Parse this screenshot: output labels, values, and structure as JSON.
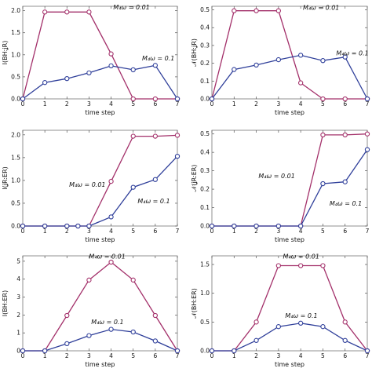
{
  "chart_data": [
    {
      "type": "line",
      "ylabel": "I(BH:ʝR)",
      "xlabel": "time step",
      "xlim": [
        0,
        7
      ],
      "ylim": [
        0,
        2.1
      ],
      "xticks": [
        0,
        1,
        2,
        3,
        4,
        5,
        6,
        7
      ],
      "yticks": [
        0,
        0.5,
        1.0,
        1.5,
        2.0
      ],
      "ytick_labels": [
        "0.0",
        "0.5",
        "1.0",
        "1.5",
        "2.0"
      ],
      "series": [
        {
          "name": "M₄ω = 0.01",
          "color": "#a3306a",
          "x": [
            0,
            1,
            2,
            3,
            4,
            5,
            6,
            7
          ],
          "y": [
            0,
            1.97,
            1.97,
            1.97,
            1.02,
            0,
            0,
            0
          ]
        },
        {
          "name": "M₄ω = 0.1",
          "color": "#2f3f9a",
          "x": [
            0,
            1,
            2,
            3,
            4,
            5,
            6,
            7
          ],
          "y": [
            0,
            0.37,
            0.46,
            0.59,
            0.75,
            0.66,
            0.76,
            0
          ]
        }
      ],
      "annotations": [
        {
          "text": "M₄ω = 0.01",
          "x": 4.1,
          "y": 2.03
        },
        {
          "text": "M₄ω = 0.1",
          "x": 5.4,
          "y": 0.87
        }
      ]
    },
    {
      "type": "line",
      "ylabel": "𝒩(BH:ʝR)",
      "xlabel": "time step",
      "xlim": [
        0,
        7
      ],
      "ylim": [
        0,
        0.52
      ],
      "xticks": [
        0,
        1,
        2,
        3,
        4,
        5,
        6,
        7
      ],
      "yticks": [
        0,
        0.1,
        0.2,
        0.3,
        0.4,
        0.5
      ],
      "ytick_labels": [
        "0.0",
        "0.1",
        "0.2",
        "0.3",
        "0.4",
        "0.5"
      ],
      "series": [
        {
          "name": "M₄ω = 0.01",
          "color": "#a3306a",
          "x": [
            0,
            1,
            2,
            3,
            4,
            5,
            6,
            7
          ],
          "y": [
            0,
            0.495,
            0.495,
            0.495,
            0.09,
            0,
            0,
            0
          ]
        },
        {
          "name": "M₄ω = 0.1",
          "color": "#2f3f9a",
          "x": [
            0,
            1,
            2,
            3,
            4,
            5,
            6,
            7
          ],
          "y": [
            0,
            0.165,
            0.19,
            0.22,
            0.245,
            0.215,
            0.235,
            0
          ]
        }
      ],
      "annotations": [
        {
          "text": "M₄ω = 0.01",
          "x": 4.1,
          "y": 0.5
        },
        {
          "text": "M₄ω = 0.1",
          "x": 5.6,
          "y": 0.245
        }
      ]
    },
    {
      "type": "line",
      "ylabel": "I(ʝR:ER)",
      "xlabel": "time step",
      "xlim": [
        0,
        7
      ],
      "ylim": [
        0,
        2.1
      ],
      "xticks": [
        0,
        1,
        2,
        3,
        4,
        5,
        6,
        7
      ],
      "yticks": [
        0,
        0.5,
        1.0,
        1.5,
        2.0
      ],
      "ytick_labels": [
        "0.0",
        "0.5",
        "1.0",
        "1.5",
        "2.0"
      ],
      "series": [
        {
          "name": "M₄ω = 0.01",
          "color": "#a3306a",
          "x": [
            0,
            1,
            2,
            2.5,
            3,
            4,
            5,
            6,
            7
          ],
          "y": [
            0,
            0,
            0,
            0,
            0,
            0.98,
            1.97,
            1.97,
            1.99
          ]
        },
        {
          "name": "M₄ω = 0.1",
          "color": "#2f3f9a",
          "x": [
            0,
            1,
            2,
            2.5,
            3,
            4,
            5,
            6,
            7
          ],
          "y": [
            0,
            0,
            0,
            0,
            0,
            0.2,
            0.85,
            1.02,
            1.53
          ]
        }
      ],
      "annotations": [
        {
          "text": "M₄ω = 0.01",
          "x": 2.1,
          "y": 0.86
        },
        {
          "text": "M₄ω = 0.1",
          "x": 5.2,
          "y": 0.5
        }
      ]
    },
    {
      "type": "line",
      "ylabel": "𝒩(ʝR:ER)",
      "xlabel": "time step",
      "xlim": [
        0,
        7
      ],
      "ylim": [
        0,
        0.52
      ],
      "xticks": [
        0,
        1,
        2,
        3,
        4,
        5,
        6,
        7
      ],
      "yticks": [
        0,
        0.1,
        0.2,
        0.3,
        0.4,
        0.5
      ],
      "ytick_labels": [
        "0.0",
        "0.1",
        "0.2",
        "0.3",
        "0.4",
        "0.5"
      ],
      "series": [
        {
          "name": "M₄ω = 0.01",
          "color": "#a3306a",
          "x": [
            0,
            1,
            2,
            3,
            4,
            5,
            6,
            7
          ],
          "y": [
            0,
            0,
            0,
            0,
            0,
            0.495,
            0.495,
            0.5
          ]
        },
        {
          "name": "M₄ω = 0.1",
          "color": "#2f3f9a",
          "x": [
            0,
            1,
            2,
            3,
            4,
            5,
            6,
            7
          ],
          "y": [
            0,
            0,
            0,
            0,
            0,
            0.23,
            0.24,
            0.415
          ]
        }
      ],
      "annotations": [
        {
          "text": "M₄ω = 0.01",
          "x": 2.1,
          "y": 0.26
        },
        {
          "text": "M₄ω = 0.1",
          "x": 5.3,
          "y": 0.11
        }
      ]
    },
    {
      "type": "line",
      "ylabel": "I(BH:ER)",
      "xlabel": "time step",
      "xlim": [
        0,
        7
      ],
      "ylim": [
        0,
        5.3
      ],
      "xticks": [
        0,
        1,
        2,
        3,
        4,
        5,
        6,
        7
      ],
      "yticks": [
        0,
        1,
        2,
        3,
        4,
        5
      ],
      "ytick_labels": [
        "0",
        "1",
        "2",
        "3",
        "4",
        "5"
      ],
      "series": [
        {
          "name": "M₄ω = 0.01",
          "color": "#a3306a",
          "x": [
            0,
            1,
            2,
            3,
            4,
            5,
            6,
            7
          ],
          "y": [
            0,
            0,
            1.97,
            3.95,
            4.95,
            3.95,
            1.97,
            0
          ]
        },
        {
          "name": "M₄ω = 0.1",
          "color": "#2f3f9a",
          "x": [
            0,
            1,
            2,
            3,
            4,
            5,
            6,
            7
          ],
          "y": [
            0,
            0,
            0.4,
            0.85,
            1.2,
            1.05,
            0.55,
            0
          ]
        }
      ],
      "annotations": [
        {
          "text": "M₄ω = 0.01",
          "x": 3.0,
          "y": 5.15
        },
        {
          "text": "M₄ω = 0.1",
          "x": 3.1,
          "y": 1.5
        }
      ]
    },
    {
      "type": "line",
      "ylabel": "𝒩(BH:ER)",
      "xlabel": "time step",
      "xlim": [
        0,
        7
      ],
      "ylim": [
        0,
        1.65
      ],
      "xticks": [
        0,
        1,
        2,
        3,
        4,
        5,
        6,
        7
      ],
      "yticks": [
        0,
        0.5,
        1.0,
        1.5
      ],
      "ytick_labels": [
        "0.0",
        "0.5",
        "1.0",
        "1.5"
      ],
      "series": [
        {
          "name": "M₄ω = 0.01",
          "color": "#a3306a",
          "x": [
            0,
            1,
            2,
            3,
            4,
            5,
            6,
            7
          ],
          "y": [
            0,
            0,
            0.5,
            1.48,
            1.48,
            1.48,
            0.5,
            0
          ]
        },
        {
          "name": "M₄ω = 0.1",
          "color": "#2f3f9a",
          "x": [
            0,
            1,
            2,
            3,
            4,
            5,
            6,
            7
          ],
          "y": [
            0,
            0,
            0.18,
            0.42,
            0.48,
            0.42,
            0.18,
            0
          ]
        }
      ],
      "annotations": [
        {
          "text": "M₄ω = 0.01",
          "x": 3.2,
          "y": 1.6
        },
        {
          "text": "M₄ω = 0.1",
          "x": 3.3,
          "y": 0.57
        }
      ]
    }
  ]
}
